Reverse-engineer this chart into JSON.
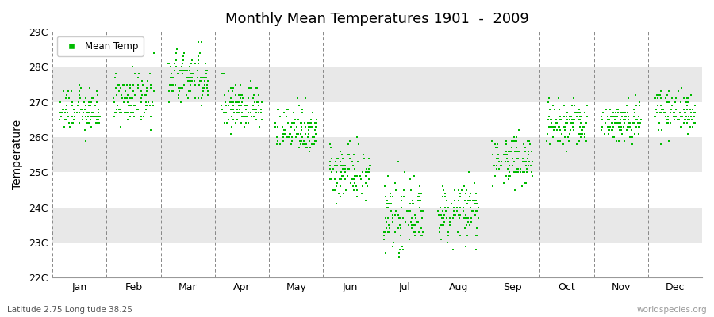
{
  "title": "Monthly Mean Temperatures 1901  -  2009",
  "ylabel": "Temperature",
  "footnote_left": "Latitude 2.75 Longitude 38.25",
  "footnote_right": "worldspecies.org",
  "legend_label": "Mean Temp",
  "marker_color": "#00bb00",
  "months": [
    "Jan",
    "Feb",
    "Mar",
    "Apr",
    "May",
    "Jun",
    "Jul",
    "Aug",
    "Sep",
    "Oct",
    "Nov",
    "Dec"
  ],
  "ylim": [
    22.0,
    29.0
  ],
  "yticks": [
    22,
    23,
    24,
    25,
    26,
    27,
    28,
    29
  ],
  "ytick_labels": [
    "22C",
    "23C",
    "24C",
    "25C",
    "26C",
    "27C",
    "28C",
    "29C"
  ],
  "n_years": 109,
  "mean_temps": [
    26.75,
    27.05,
    27.65,
    26.85,
    26.25,
    25.05,
    23.75,
    23.85,
    25.35,
    26.35,
    26.45,
    26.75
  ],
  "std_temps": [
    0.3,
    0.35,
    0.4,
    0.35,
    0.35,
    0.4,
    0.45,
    0.4,
    0.35,
    0.35,
    0.3,
    0.3
  ],
  "band_colors_odd": "#e8e8e8",
  "band_colors_even": "#ffffff",
  "bg_color": "#ffffff",
  "fig_bg_color": "#ffffff"
}
